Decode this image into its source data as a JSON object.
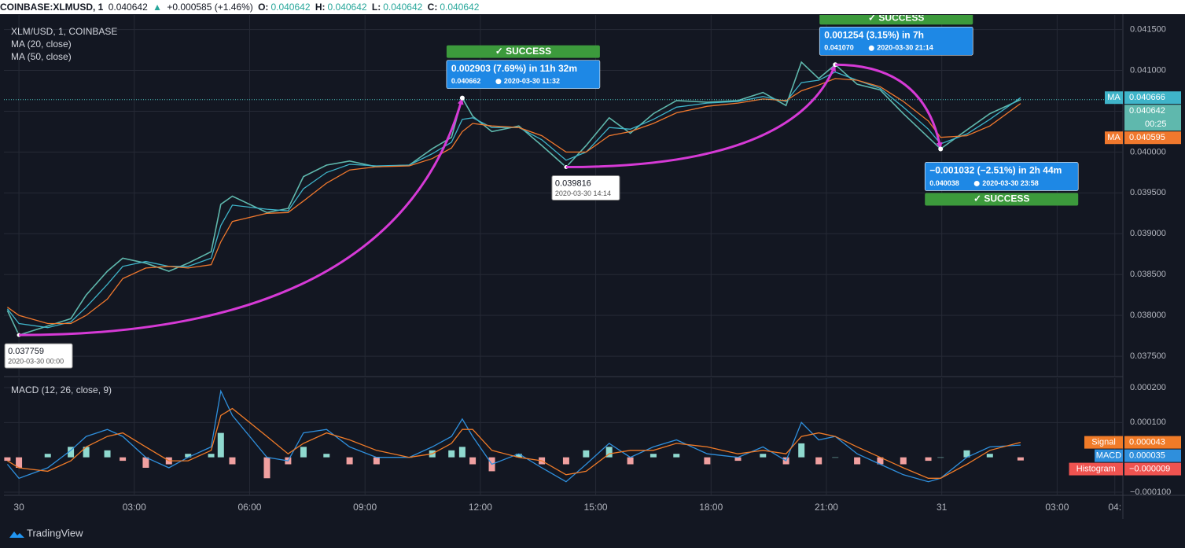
{
  "header": {
    "symbol": "COINBASE:XLMUSD, 1",
    "last": "0.040642",
    "arrow": "▲",
    "change": "+0.000585 (+1.46%)",
    "o_label": "O:",
    "open": "0.040642",
    "h_label": "H:",
    "high": "0.040642",
    "l_label": "L:",
    "low": "0.040642",
    "c_label": "C:",
    "close": "0.040642"
  },
  "footer": {
    "brand": "TradingView"
  },
  "chart_data": [
    {
      "type": "line",
      "title": "XLM/USD, 1, COINBASE",
      "grid": true,
      "xlim": [
        -0.39,
        28.71
      ],
      "ylim": [
        0.03726,
        0.04165
      ],
      "yticks": [
        {
          "value": 0.0415,
          "label": "0.041500"
        },
        {
          "value": 0.041,
          "label": "0.041000"
        },
        {
          "value": 0.0405,
          "label": "0.040500"
        },
        {
          "value": 0.04,
          "label": "0.040000"
        },
        {
          "value": 0.0395,
          "label": "0.039500"
        },
        {
          "value": 0.039,
          "label": "0.039000"
        },
        {
          "value": 0.0385,
          "label": "0.038500"
        },
        {
          "value": 0.038,
          "label": "0.038000"
        },
        {
          "value": 0.0375,
          "label": "0.037500"
        }
      ],
      "x": [
        -0.3,
        0,
        0.75,
        1.35,
        1.75,
        2.3,
        2.7,
        3.3,
        3.9,
        4.4,
        5.0,
        5.25,
        5.55,
        6.45,
        7.0,
        7.4,
        8.0,
        8.6,
        9.3,
        10.15,
        10.75,
        11.25,
        11.53,
        11.8,
        12.3,
        13.0,
        13.6,
        14.23,
        14.75,
        15.35,
        15.9,
        16.5,
        17.1,
        17.9,
        18.7,
        19.35,
        19.95,
        20.35,
        20.8,
        21.23,
        21.8,
        22.4,
        23.0,
        23.65,
        23.97,
        24.65,
        25.25,
        26.05
      ],
      "series": [
        {
          "color": "#5fb8ad",
          "last_value": 0.040642,
          "countdown": "00:25",
          "values": [
            0.03806,
            0.037759,
            0.03787,
            0.03796,
            0.03825,
            0.03854,
            0.0387,
            0.03864,
            0.03854,
            0.03864,
            0.03878,
            0.03936,
            0.03946,
            0.03926,
            0.03931,
            0.0397,
            0.03984,
            0.03989,
            0.03982,
            0.03984,
            0.04004,
            0.04018,
            0.040662,
            0.04044,
            0.04025,
            0.04032,
            0.04008,
            0.039816,
            0.04008,
            0.04042,
            0.04023,
            0.04047,
            0.04063,
            0.04061,
            0.04063,
            0.04073,
            0.04057,
            0.0411,
            0.0409,
            0.04107,
            0.04083,
            0.04076,
            0.04047,
            0.04018,
            0.040038,
            0.04027,
            0.04047,
            0.040642
          ]
        },
        {
          "name": "MA (20, close)",
          "tag": "MA",
          "color": "#3fb4c9",
          "last_value": 0.040666,
          "values": [
            0.03808,
            0.0379,
            0.03785,
            0.03792,
            0.0381,
            0.03838,
            0.0386,
            0.03866,
            0.0386,
            0.0386,
            0.0387,
            0.0391,
            0.03935,
            0.0393,
            0.03928,
            0.03955,
            0.03975,
            0.03985,
            0.03983,
            0.03984,
            0.03998,
            0.04012,
            0.0404,
            0.04042,
            0.0403,
            0.0403,
            0.04015,
            0.0399,
            0.04,
            0.0403,
            0.04028,
            0.0404,
            0.04055,
            0.0406,
            0.04062,
            0.04068,
            0.04062,
            0.04085,
            0.04088,
            0.04098,
            0.04088,
            0.04078,
            0.04055,
            0.04028,
            0.0401,
            0.04022,
            0.0404,
            0.040666
          ]
        },
        {
          "name": "MA (50, close)",
          "tag": "MA",
          "color": "#f0782d",
          "last_value": 0.040595,
          "values": [
            0.0381,
            0.038,
            0.0379,
            0.0379,
            0.038,
            0.0382,
            0.03845,
            0.03858,
            0.0386,
            0.03858,
            0.03862,
            0.0389,
            0.03915,
            0.03925,
            0.03926,
            0.0394,
            0.03962,
            0.03978,
            0.03982,
            0.03983,
            0.03992,
            0.04005,
            0.04025,
            0.04035,
            0.04032,
            0.0403,
            0.0402,
            0.04,
            0.04,
            0.0402,
            0.04025,
            0.04035,
            0.04048,
            0.04056,
            0.0406,
            0.04065,
            0.04063,
            0.04075,
            0.04082,
            0.0409,
            0.04088,
            0.0408,
            0.04062,
            0.04038,
            0.04018,
            0.0402,
            0.04032,
            0.040595
          ]
        }
      ],
      "point_labels": [
        {
          "x": 0,
          "y": 0.037759,
          "date": "2020-03-30 00:00"
        },
        {
          "x": 14.23,
          "y": 0.039816,
          "date": "2020-03-30 14:14"
        }
      ],
      "projections": [
        {
          "from": {
            "x": 0,
            "y": 0.037759
          },
          "to": {
            "x": 11.53,
            "y": 0.040662
          },
          "change": "0.002903 (7.69%) in 11h 32m",
          "date": "2020-03-30  11:32",
          "status": "✓ SUCCESS"
        },
        {
          "from": {
            "x": 14.23,
            "y": 0.039816
          },
          "to": {
            "x": 21.23,
            "y": {
              "value": 0.04107,
              "label": "0.041070"
            }
          },
          "change": "0.001254 (3.15%) in 7h",
          "date": "2020-03-30  21:14",
          "status": "✓ SUCCESS"
        },
        {
          "from": {
            "x": 21.23,
            "y": 0.04107
          },
          "to": {
            "x": 23.97,
            "y": 0.040038
          },
          "change": "−0.001032 (−2.51%) in 2h 44m",
          "date": "2020-03-30  23:58",
          "status": "✓ SUCCESS"
        }
      ],
      "projection_color": "#d63ad6",
      "success_color": "#3c9a3c",
      "box_color": "#1e88e5"
    },
    {
      "type": "line",
      "title": "MACD (12, 26, close, 9)",
      "grid": true,
      "xlim": [
        -0.39,
        28.71
      ],
      "ylim": [
        -0.000109,
        0.000227
      ],
      "xticks": [
        {
          "value": 0,
          "label": "30"
        },
        {
          "value": 3,
          "label": "03:00"
        },
        {
          "value": 6,
          "label": "06:00"
        },
        {
          "value": 9,
          "label": "09:00"
        },
        {
          "value": 12,
          "label": "12:00"
        },
        {
          "value": 15,
          "label": "15:00"
        },
        {
          "value": 18,
          "label": "18:00"
        },
        {
          "value": 21,
          "label": "21:00"
        },
        {
          "value": 24,
          "label": "31"
        },
        {
          "value": 27,
          "label": "03:00"
        },
        {
          "value": 28.5,
          "label": "04:"
        }
      ],
      "yticks": [
        {
          "value": 0.0002,
          "label": "0.000200"
        },
        {
          "value": 0.0001,
          "label": "0.000100"
        },
        {
          "value": -0.0001,
          "label": "−0.000100"
        }
      ],
      "x": [
        -0.3,
        0,
        0.75,
        1.35,
        1.75,
        2.3,
        2.7,
        3.3,
        3.9,
        4.4,
        5.0,
        5.25,
        5.55,
        6.45,
        7.0,
        7.4,
        8.0,
        8.6,
        9.3,
        10.15,
        10.75,
        11.25,
        11.53,
        11.8,
        12.3,
        13.0,
        13.6,
        14.23,
        14.75,
        15.35,
        15.9,
        16.5,
        17.1,
        17.9,
        18.7,
        19.35,
        19.95,
        20.35,
        20.8,
        21.23,
        21.8,
        22.4,
        23.0,
        23.65,
        23.97,
        24.65,
        25.25,
        26.05
      ],
      "series": [
        {
          "name": "Histogram",
          "type": "bar",
          "color": "#ef5350",
          "color_up": "#8fd9cf",
          "color_down": "#f0a0a0",
          "last_value": {
            "value": -9e-06,
            "label": "−0.000009"
          },
          "values": [
            -1e-05,
            -3e-05,
            1e-05,
            3e-05,
            3e-05,
            2e-05,
            -1e-05,
            -3e-05,
            -2e-05,
            1e-05,
            1e-05,
            7e-05,
            -2e-05,
            -6e-05,
            -2e-05,
            3e-05,
            1e-05,
            -2e-05,
            -2e-05,
            0,
            2e-05,
            2e-05,
            3e-05,
            -2e-05,
            -4e-05,
            1e-05,
            -2e-05,
            -2e-05,
            2e-05,
            3e-05,
            -2e-05,
            1e-05,
            1e-05,
            -2e-05,
            -1e-05,
            1e-05,
            -2e-05,
            4e-05,
            -2e-05,
            0,
            -2e-05,
            -2e-05,
            -2e-05,
            -1e-05,
            0,
            2e-05,
            1e-05,
            -9e-06
          ]
        },
        {
          "name": "MACD",
          "color": "#2f8fdc",
          "last_value": 3.5e-05,
          "values": [
            -2e-05,
            -6e-05,
            -3e-05,
            2e-05,
            6e-05,
            8e-05,
            6e-05,
            0,
            -3e-05,
            0,
            3e-05,
            0.00019,
            0.00012,
            0,
            -1e-05,
            7e-05,
            8e-05,
            3e-05,
            0,
            0,
            3e-05,
            6e-05,
            0.00011,
            6e-05,
            -2e-05,
            1e-05,
            -3e-05,
            -7e-05,
            -2e-05,
            4e-05,
            0,
            3e-05,
            5e-05,
            1e-05,
            0,
            3e-05,
            -1e-05,
            0.0001,
            5e-05,
            6e-05,
            1e-05,
            -2e-05,
            -5e-05,
            -7e-05,
            -6e-05,
            0,
            3e-05,
            3.5e-05
          ]
        },
        {
          "name": "Signal",
          "color": "#f07b28",
          "last_value": 4.3e-05,
          "values": [
            -1e-05,
            -3e-05,
            -4e-05,
            -1e-05,
            3e-05,
            6e-05,
            7e-05,
            3e-05,
            -1e-05,
            -1e-05,
            2e-05,
            0.00012,
            0.00014,
            6e-05,
            1e-05,
            4e-05,
            7e-05,
            5e-05,
            2e-05,
            0,
            1e-05,
            4e-05,
            8e-05,
            8e-05,
            2e-05,
            0,
            -1e-05,
            -5e-05,
            -4e-05,
            1e-05,
            2e-05,
            2e-05,
            4e-05,
            3e-05,
            1e-05,
            2e-05,
            1e-05,
            6e-05,
            7e-05,
            6e-05,
            3e-05,
            0,
            -3e-05,
            -6e-05,
            -6e-05,
            -2e-05,
            2e-05,
            4.3e-05
          ]
        }
      ]
    }
  ]
}
